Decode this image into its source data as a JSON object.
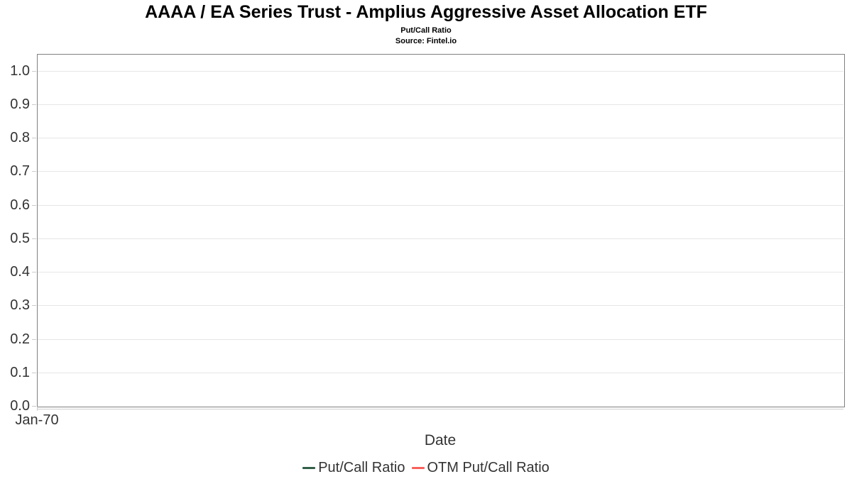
{
  "chart_data": {
    "type": "line",
    "title": "AAAA / EA Series Trust - Amplius Aggressive Asset Allocation ETF",
    "subtitle": "Put/Call Ratio",
    "source": "Source: Fintel.io",
    "xlabel": "Date",
    "x_ticks": [
      "Jan-70"
    ],
    "y_ticks": [
      "1.0",
      "0.9",
      "0.8",
      "0.7",
      "0.6",
      "0.5",
      "0.4",
      "0.3",
      "0.2",
      "0.1",
      "0.0"
    ],
    "ylim": [
      0,
      1.05
    ],
    "grid": true,
    "legend_position": "bottom",
    "series": [
      {
        "name": "Put/Call Ratio",
        "color": "#335f48",
        "values": []
      },
      {
        "name": "OTM Put/Call Ratio",
        "color": "#f9615b",
        "values": []
      }
    ]
  },
  "colors": {
    "background": "#ffffff",
    "plot_border": "#808080",
    "gridline": "#e6e6e6",
    "tick": "#cccccc",
    "text": "#333333",
    "title_text": "#000000"
  }
}
